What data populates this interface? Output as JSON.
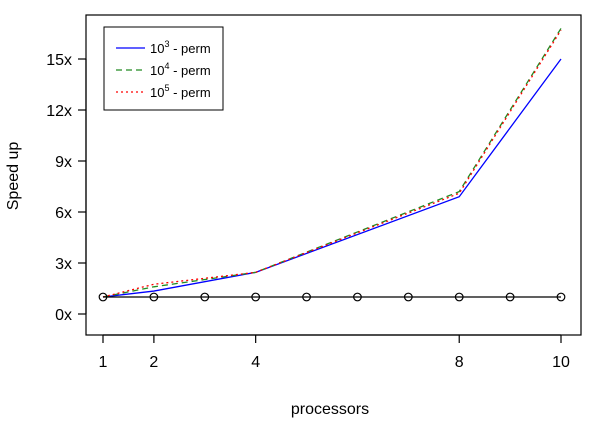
{
  "chart_data": {
    "type": "line",
    "title": "",
    "xlabel": "processors",
    "ylabel": "Speed up",
    "xlim": [
      1,
      10
    ],
    "ylim": [
      0,
      17
    ],
    "x_ticks": [
      {
        "value": 1,
        "label": "1"
      },
      {
        "value": 2,
        "label": "2"
      },
      {
        "value": 4,
        "label": "4"
      },
      {
        "value": 8,
        "label": "8"
      },
      {
        "value": 10,
        "label": "10"
      }
    ],
    "y_ticks": [
      {
        "value": 0,
        "label": "0x"
      },
      {
        "value": 3,
        "label": "3x"
      },
      {
        "value": 6,
        "label": "6x"
      },
      {
        "value": 9,
        "label": "9x"
      },
      {
        "value": 12,
        "label": "12x"
      },
      {
        "value": 15,
        "label": "15x"
      }
    ],
    "grid": false,
    "legend_position": "top-left",
    "series": [
      {
        "legend_base": "10",
        "legend_exp": "3",
        "legend_suffix": " - perm",
        "color": "#0000ff",
        "dash": "solid",
        "x": [
          1,
          2,
          4,
          8,
          10
        ],
        "y": [
          1.0,
          1.35,
          2.45,
          6.9,
          15.0
        ]
      },
      {
        "legend_base": "10",
        "legend_exp": "4",
        "legend_suffix": " - perm",
        "color": "#228b22",
        "dash": "dashed",
        "x": [
          1,
          2,
          4,
          8,
          10
        ],
        "y": [
          1.0,
          1.6,
          2.45,
          7.2,
          16.8
        ]
      },
      {
        "legend_base": "10",
        "legend_exp": "5",
        "legend_suffix": " - perm",
        "color": "#ff0000",
        "dash": "dotted",
        "x": [
          1,
          2,
          4,
          8,
          10
        ],
        "y": [
          1.0,
          1.75,
          2.45,
          7.1,
          16.7
        ]
      }
    ],
    "baseline": {
      "color": "#000000",
      "marker": "open-circle",
      "x": [
        1,
        2,
        3,
        4,
        5,
        6,
        7,
        8,
        9,
        10
      ],
      "y": [
        1,
        1,
        1,
        1,
        1,
        1,
        1,
        1,
        1,
        1
      ]
    }
  }
}
